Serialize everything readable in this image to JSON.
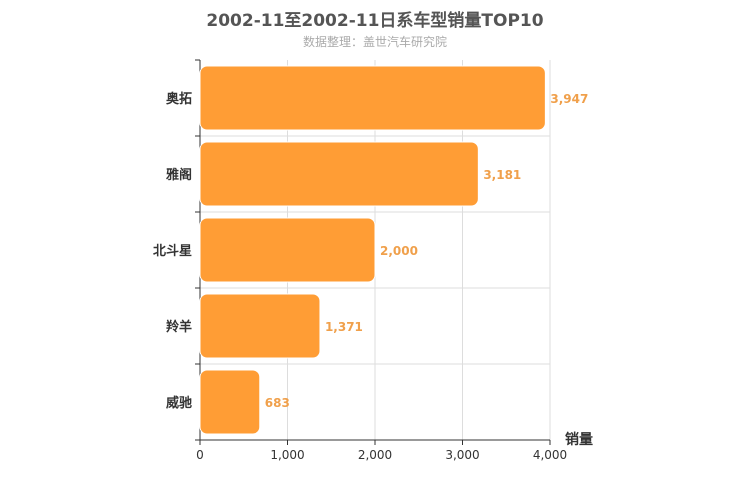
{
  "chart_data": {
    "type": "bar",
    "orientation": "horizontal",
    "title": "2002-11至2002-11日系车型销量TOP10",
    "subtitle": "数据整理：盖世汽车研究院",
    "xlabel": "销量",
    "categories": [
      "奥拓",
      "雅阁",
      "北斗星",
      "羚羊",
      "威驰"
    ],
    "values": [
      3947,
      3181,
      2000,
      1371,
      683
    ],
    "value_labels": [
      "3,947",
      "3,181",
      "2,000",
      "1,371",
      "683"
    ],
    "xlim": [
      0,
      4000
    ],
    "xticks": [
      0,
      1000,
      2000,
      3000,
      4000
    ],
    "xtick_labels": [
      "0",
      "1,000",
      "2,000",
      "3,000",
      "4,000"
    ],
    "grid": true,
    "colors": {
      "bar": "#FF9D35",
      "bar_stroke": "#ffffff",
      "label": "#F0A04B",
      "grid": "#dddddd",
      "axis": "#333333"
    }
  }
}
